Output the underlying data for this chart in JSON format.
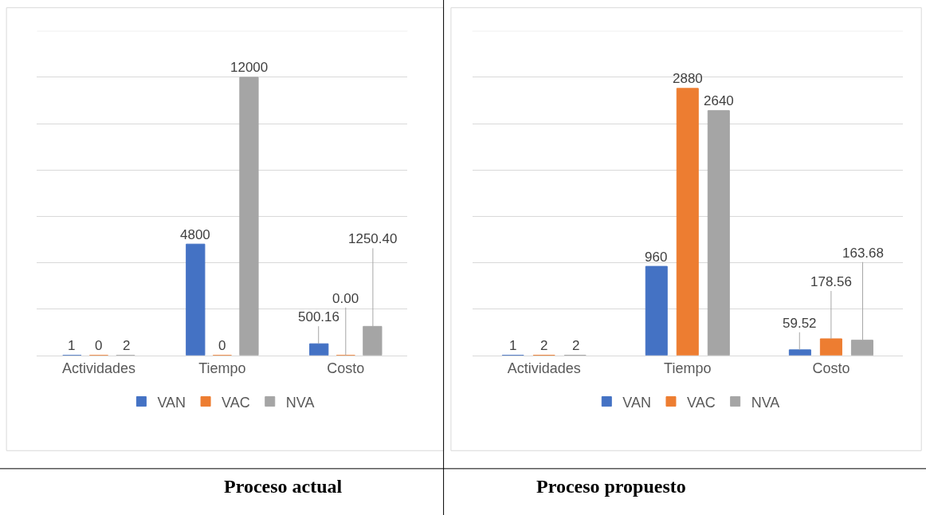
{
  "chart_data": [
    {
      "type": "bar",
      "title": "Proceso actual",
      "categories": [
        "Actividades",
        "Tiempo",
        "Costo"
      ],
      "series": [
        {
          "name": "VAN",
          "color": "#4472c4",
          "values": [
            1,
            4800,
            500.16
          ],
          "value_labels": [
            "1",
            "4800",
            "500.16"
          ]
        },
        {
          "name": "VAC",
          "color": "#ed7d31",
          "values": [
            0,
            0,
            0
          ],
          "value_labels": [
            "0",
            "0",
            "0.00"
          ]
        },
        {
          "name": "NVA",
          "color": "#a5a5a5",
          "values": [
            2,
            12000,
            1250.4
          ],
          "value_labels": [
            "2",
            "12000",
            "1250.40"
          ]
        }
      ],
      "ylim": [
        0,
        14000
      ],
      "yticks": [
        {
          "value": 0,
          "label": null
        },
        {
          "value": 2000,
          "label": null
        },
        {
          "value": 4000,
          "label": null
        },
        {
          "value": 6000,
          "label": null
        },
        {
          "value": 8000,
          "label": null
        },
        {
          "value": 10000,
          "label": null
        },
        {
          "value": 12000,
          "label": null
        },
        {
          "value": 14000,
          "label": null
        }
      ],
      "grid": "y",
      "legend": "bottom",
      "tick_labels": "x"
    },
    {
      "type": "bar",
      "title": "Proceso propuesto",
      "categories": [
        "Actividades",
        "Tiempo",
        "Costo"
      ],
      "series": [
        {
          "name": "VAN",
          "color": "#4472c4",
          "values": [
            1,
            960,
            59.52
          ],
          "value_labels": [
            "1",
            "960",
            "59.52"
          ]
        },
        {
          "name": "VAC",
          "color": "#ed7d31",
          "values": [
            2,
            2880,
            178.56
          ],
          "value_labels": [
            "2",
            "2880",
            "178.56"
          ]
        },
        {
          "name": "NVA",
          "color": "#a5a5a5",
          "values": [
            2,
            2640,
            163.68
          ],
          "value_labels": [
            "2",
            "2640",
            "163.68"
          ]
        }
      ],
      "ylim": [
        0,
        3500
      ],
      "yticks": [
        {
          "value": 0,
          "label": null
        },
        {
          "value": 500,
          "label": null
        },
        {
          "value": 1000,
          "label": null
        },
        {
          "value": 1500,
          "label": null
        },
        {
          "value": 2000,
          "label": null
        },
        {
          "value": 2500,
          "label": null
        },
        {
          "value": 3000,
          "label": null
        },
        {
          "value": 3500,
          "label": null
        }
      ],
      "grid": "y",
      "legend": "bottom",
      "tick_labels": "x"
    }
  ]
}
